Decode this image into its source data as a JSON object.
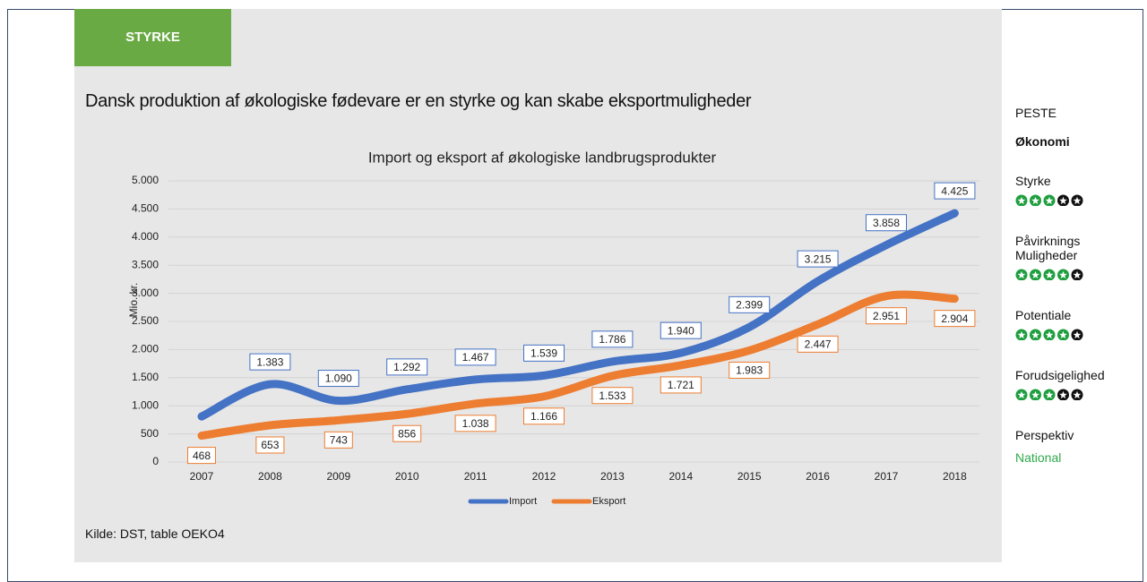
{
  "header": {
    "tag": "STYRKE",
    "title": "Dansk produktion af økologiske fødevare er en styrke og kan skabe eksportmuligheder"
  },
  "chart_data": {
    "type": "line",
    "title": "Import og eksport af økologiske landbrugsprodukter",
    "y_label": "Mio. kr.",
    "categories": [
      "2007",
      "2008",
      "2009",
      "2010",
      "2011",
      "2012",
      "2013",
      "2014",
      "2015",
      "2016",
      "2017",
      "2018"
    ],
    "series": [
      {
        "name": "Import",
        "color": "#4472c4",
        "values": [
          810,
          1383,
          1090,
          1292,
          1467,
          1539,
          1786,
          1940,
          2399,
          3215,
          3858,
          4425
        ],
        "value_labels": [
          null,
          "1.383",
          "1.090",
          "1.292",
          "1.467",
          "1.539",
          "1.786",
          "1.940",
          "2.399",
          "3.215",
          "3.858",
          "4.425"
        ]
      },
      {
        "name": "Eksport",
        "color": "#ed7d31",
        "values": [
          468,
          653,
          743,
          856,
          1038,
          1166,
          1533,
          1721,
          1983,
          2447,
          2951,
          2904
        ],
        "value_labels": [
          "468",
          "653",
          "743",
          "856",
          "1.038",
          "1.166",
          "1.533",
          "1.721",
          "1.983",
          "2.447",
          "2.951",
          "2.904"
        ]
      }
    ],
    "ylim": [
      0,
      5000
    ],
    "yticks": [
      0,
      500,
      {
        "value": 1000,
        "label": "1.000"
      },
      {
        "value": 1500,
        "label": "1.500"
      },
      {
        "value": 2000,
        "label": "2.000"
      },
      {
        "value": 2500,
        "label": "2.500"
      },
      {
        "value": 3000,
        "label": "3.000"
      },
      {
        "value": 3500,
        "label": "3.500"
      },
      {
        "value": 4000,
        "label": "4.000"
      },
      {
        "value": 4500,
        "label": "4.500"
      },
      {
        "value": 5000,
        "label": "5.000"
      }
    ],
    "grid": true,
    "legend": "bottom"
  },
  "source": "Kilde: DST, table OEKO4",
  "sidebar": {
    "heading": "PESTE",
    "category": "Økonomi",
    "rating_max": 5,
    "ratings": [
      {
        "label": "Styrke",
        "value": 3
      },
      {
        "label": "Påvirknings Muligheder",
        "value": 4
      },
      {
        "label": "Potentiale",
        "value": 4
      },
      {
        "label": "Forudsigelighed",
        "value": 3
      }
    ],
    "perspective_label": "Perspektiv",
    "perspective": "National"
  }
}
